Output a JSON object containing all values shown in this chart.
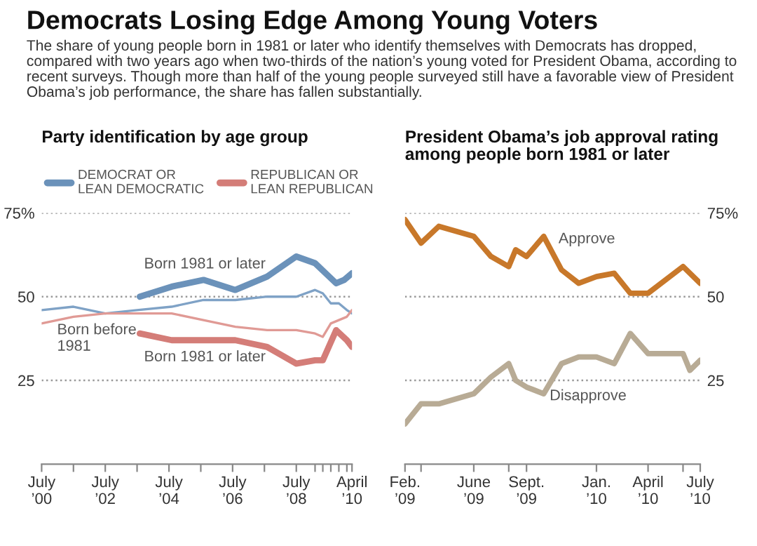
{
  "chart_data": [
    {
      "type": "other",
      "title": "Democrats Losing Edge Among Young Voters",
      "subtitle": "The share of young people born in 1981 or later who identify themselves with Democrats has dropped, compared with two years ago when two-thirds of the nation’s young voted for President Obama, according to recent surveys. Though more than half of the young people surveyed still have a favorable view of President Obama’s job performance, the share has fallen substantially."
    },
    {
      "type": "line",
      "title": "Party identification by age group",
      "xlim": [
        "2000-07",
        "2010-04"
      ],
      "xticks": [
        {
          "value": "2000-07",
          "label": "July\n’00"
        },
        {
          "value": "2001-07",
          "label": null
        },
        {
          "value": "2002-07",
          "label": "July\n’02"
        },
        {
          "value": "2003-07",
          "label": null
        },
        {
          "value": "2004-07",
          "label": "July\n’04"
        },
        {
          "value": "2005-07",
          "label": null
        },
        {
          "value": "2006-07",
          "label": "July\n’06"
        },
        {
          "value": "2007-07",
          "label": null
        },
        {
          "value": "2008-07",
          "label": "July\n’08"
        },
        {
          "value": "2009-02",
          "label": null
        },
        {
          "value": "2009-05",
          "label": null
        },
        {
          "value": "2009-08",
          "label": null
        },
        {
          "value": "2009-11",
          "label": null
        },
        {
          "value": "2010-02",
          "label": null
        },
        {
          "value": "2010-04",
          "label": "April\n’10"
        }
      ],
      "ylim": [
        0,
        75
      ],
      "yticks": [
        25,
        50,
        {
          "value": 75,
          "label": "75%"
        }
      ],
      "grid": "y",
      "legend": "top",
      "series": [
        {
          "name": "DEMOCRAT OR\nLEAN DEMOCRATIC",
          "color": "#6b92ba",
          "x": [
            "2003-08",
            "2004-08",
            "2005-08",
            "2006-08",
            "2007-08",
            "2008-07",
            "2009-02",
            "2009-10",
            "2010-01",
            "2010-04"
          ],
          "values": [
            50,
            53,
            55,
            52,
            56,
            62,
            60,
            54,
            55,
            57
          ]
        },
        {
          "name": "REPUBLICAN OR\nLEAN REPUBLICAN",
          "color": "#d47d78",
          "x": [
            "2003-08",
            "2004-08",
            "2005-08",
            "2006-08",
            "2007-08",
            "2008-07",
            "2009-02",
            "2009-05",
            "2009-10",
            "2010-02",
            "2010-04"
          ],
          "values": [
            39,
            37,
            37,
            37,
            35,
            30,
            31,
            31,
            40,
            37,
            35
          ]
        },
        {
          "color": "#7fa2c6",
          "x": [
            "2000-07",
            "2001-07",
            "2002-07",
            "2003-07",
            "2004-08",
            "2005-08",
            "2006-08",
            "2007-08",
            "2008-07",
            "2009-02",
            "2009-05",
            "2009-08",
            "2009-11",
            "2010-02",
            "2010-04"
          ],
          "values": [
            46,
            47,
            45,
            46,
            47,
            49,
            49,
            50,
            50,
            52,
            51,
            48,
            48,
            46,
            45
          ]
        },
        {
          "color": "#e09a95",
          "x": [
            "2000-07",
            "2001-07",
            "2002-07",
            "2003-07",
            "2004-08",
            "2005-08",
            "2006-08",
            "2007-08",
            "2008-07",
            "2009-02",
            "2009-05",
            "2009-08",
            "2009-11",
            "2010-02",
            "2010-04"
          ],
          "values": [
            42,
            44,
            45,
            45,
            45,
            43,
            41,
            40,
            40,
            39,
            38,
            42,
            43,
            44,
            46
          ]
        }
      ],
      "annotations": [
        "Born 1981 or later",
        "Born before\n1981",
        "Born 1981 or later"
      ]
    },
    {
      "type": "line",
      "title": "President Obama’s job approval rating\namong people born 1981 or later",
      "xlim": [
        "2009-02",
        "2010-07"
      ],
      "xticks": [
        {
          "value": "2009-02",
          "label": "Feb.\n’09"
        },
        {
          "value": "2009-03",
          "label": null
        },
        {
          "value": "2009-06",
          "label": "June\n’09"
        },
        {
          "value": "2009-08",
          "label": null
        },
        {
          "value": "2009-09",
          "label": "Sept.\n’09"
        },
        {
          "value": "2010-01",
          "label": "Jan.\n’10"
        },
        {
          "value": "2010-04",
          "label": "April\n’10"
        },
        {
          "value": "2010-06",
          "label": null
        },
        {
          "value": "2010-07",
          "label": "July\n’10"
        }
      ],
      "y2lim": [
        0,
        75
      ],
      "y2ticks": [
        25,
        50,
        {
          "value": 75,
          "label": "75%"
        }
      ],
      "grid": "y",
      "series": [
        {
          "axis": "y2",
          "color": "#c8782a",
          "x": [
            "2009-02",
            "2009-03",
            "2009-04",
            "2009-06",
            "2009-07",
            "2009-08",
            "2009-08-13",
            "2009-09",
            "2009-10",
            "2009-11",
            "2009-12",
            "2010-01",
            "2010-02",
            "2010-03",
            "2010-04",
            "2010-06",
            "2010-07"
          ],
          "values": [
            73,
            66,
            71,
            68,
            62,
            59,
            64,
            62,
            68,
            58,
            54,
            56,
            57,
            51,
            51,
            59,
            54
          ]
        },
        {
          "axis": "y2",
          "color": "#b8ab95",
          "x": [
            "2009-02",
            "2009-03",
            "2009-04",
            "2009-06",
            "2009-07",
            "2009-08",
            "2009-08-13",
            "2009-09",
            "2009-10",
            "2009-11",
            "2009-12",
            "2010-01",
            "2010-02",
            "2010-03",
            "2010-04",
            "2010-06",
            "2010-06-13",
            "2010-07"
          ],
          "values": [
            12,
            18,
            18,
            21,
            26,
            30,
            25,
            23,
            21,
            30,
            32,
            32,
            30,
            39,
            33,
            33,
            28,
            31
          ]
        }
      ],
      "annotations": [
        "Approve",
        "Disapprove"
      ]
    }
  ]
}
